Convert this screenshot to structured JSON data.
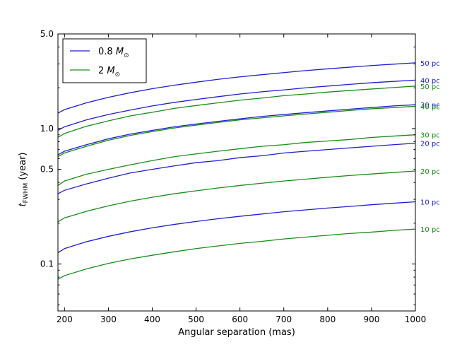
{
  "chart_data": {
    "type": "line",
    "xlabel": "Angular separation (mas)",
    "ylabel": {
      "symbol": "t",
      "subscript": "FWHM",
      "unit": " (year)"
    },
    "xlim": [
      185,
      1000
    ],
    "ylim": [
      0.045,
      5.0
    ],
    "yscale": "log",
    "x_ticks": [
      200,
      300,
      400,
      500,
      600,
      700,
      800,
      900,
      1000
    ],
    "y_ticks": [
      {
        "value": 0.1,
        "label": "0.1"
      },
      {
        "value": 0.5,
        "label": "0.5"
      },
      {
        "value": 1.0,
        "label": "1.0"
      },
      {
        "value": 5.0,
        "label": "5.0"
      }
    ],
    "x": [
      185,
      200,
      250,
      300,
      350,
      400,
      450,
      500,
      550,
      600,
      650,
      700,
      750,
      800,
      850,
      900,
      950,
      1000
    ],
    "legend": {
      "position": "top-left",
      "entries": [
        {
          "label": "0.8 ",
          "symbol": "M",
          "subscript": "⊙",
          "color": "#1f1fd0"
        },
        {
          "label": "2 ",
          "symbol": "M",
          "subscript": "⊙",
          "color": "#1a8c1a"
        }
      ]
    },
    "series": [
      {
        "group": "0.8 M",
        "color": "#1f1fd0",
        "end_label": "50 pc",
        "values": [
          1.3,
          1.38,
          1.55,
          1.7,
          1.84,
          1.97,
          2.09,
          2.2,
          2.31,
          2.41,
          2.5,
          2.59,
          2.68,
          2.76,
          2.84,
          2.92,
          2.99,
          3.06
        ]
      },
      {
        "group": "0.8 M",
        "color": "#1f1fd0",
        "end_label": "40 pc",
        "values": [
          0.97,
          1.03,
          1.16,
          1.27,
          1.37,
          1.47,
          1.56,
          1.64,
          1.72,
          1.8,
          1.87,
          1.93,
          2.0,
          2.06,
          2.12,
          2.18,
          2.23,
          2.28
        ]
      },
      {
        "group": "2 M",
        "color": "#1a8c1a",
        "end_label": "50 pc",
        "values": [
          0.86,
          0.92,
          1.04,
          1.14,
          1.24,
          1.32,
          1.41,
          1.48,
          1.55,
          1.62,
          1.68,
          1.75,
          1.8,
          1.86,
          1.91,
          1.96,
          2.01,
          2.06
        ]
      },
      {
        "group": "0.8 M",
        "color": "#1f1fd0",
        "end_label": "30 pc",
        "values": [
          0.64,
          0.68,
          0.76,
          0.84,
          0.91,
          0.97,
          1.03,
          1.08,
          1.13,
          1.18,
          1.23,
          1.27,
          1.31,
          1.35,
          1.39,
          1.43,
          1.47,
          1.5
        ]
      },
      {
        "group": "2 M",
        "color": "#1a8c1a",
        "end_label": "40 pc",
        "values": [
          0.62,
          0.66,
          0.74,
          0.82,
          0.89,
          0.95,
          1.01,
          1.06,
          1.11,
          1.16,
          1.2,
          1.24,
          1.28,
          1.32,
          1.36,
          1.4,
          1.43,
          1.46
        ]
      },
      {
        "group": "2 M",
        "color": "#1a8c1a",
        "end_label": "30 pc",
        "values": [
          0.38,
          0.41,
          0.46,
          0.5,
          0.54,
          0.58,
          0.62,
          0.65,
          0.68,
          0.71,
          0.74,
          0.76,
          0.79,
          0.81,
          0.83,
          0.86,
          0.88,
          0.9
        ]
      },
      {
        "group": "0.8 M",
        "color": "#1f1fd0",
        "end_label": "20 pc",
        "values": [
          0.33,
          0.35,
          0.39,
          0.43,
          0.47,
          0.5,
          0.53,
          0.56,
          0.58,
          0.61,
          0.63,
          0.66,
          0.68,
          0.7,
          0.72,
          0.74,
          0.76,
          0.78
        ]
      },
      {
        "group": "2 M",
        "color": "#1a8c1a",
        "end_label": "20 pc",
        "values": [
          0.205,
          0.219,
          0.245,
          0.269,
          0.291,
          0.311,
          0.33,
          0.347,
          0.364,
          0.38,
          0.395,
          0.41,
          0.423,
          0.437,
          0.45,
          0.462,
          0.474,
          0.486
        ]
      },
      {
        "group": "0.8 M",
        "color": "#1f1fd0",
        "end_label": "10 pc",
        "values": [
          0.121,
          0.13,
          0.146,
          0.16,
          0.173,
          0.185,
          0.196,
          0.206,
          0.216,
          0.225,
          0.234,
          0.243,
          0.251,
          0.259,
          0.266,
          0.274,
          0.281,
          0.288
        ]
      },
      {
        "group": "2 M",
        "color": "#1a8c1a",
        "end_label": "10 pc",
        "values": [
          0.077,
          0.082,
          0.092,
          0.101,
          0.109,
          0.116,
          0.123,
          0.13,
          0.136,
          0.142,
          0.147,
          0.153,
          0.158,
          0.163,
          0.168,
          0.172,
          0.177,
          0.181
        ]
      }
    ]
  }
}
